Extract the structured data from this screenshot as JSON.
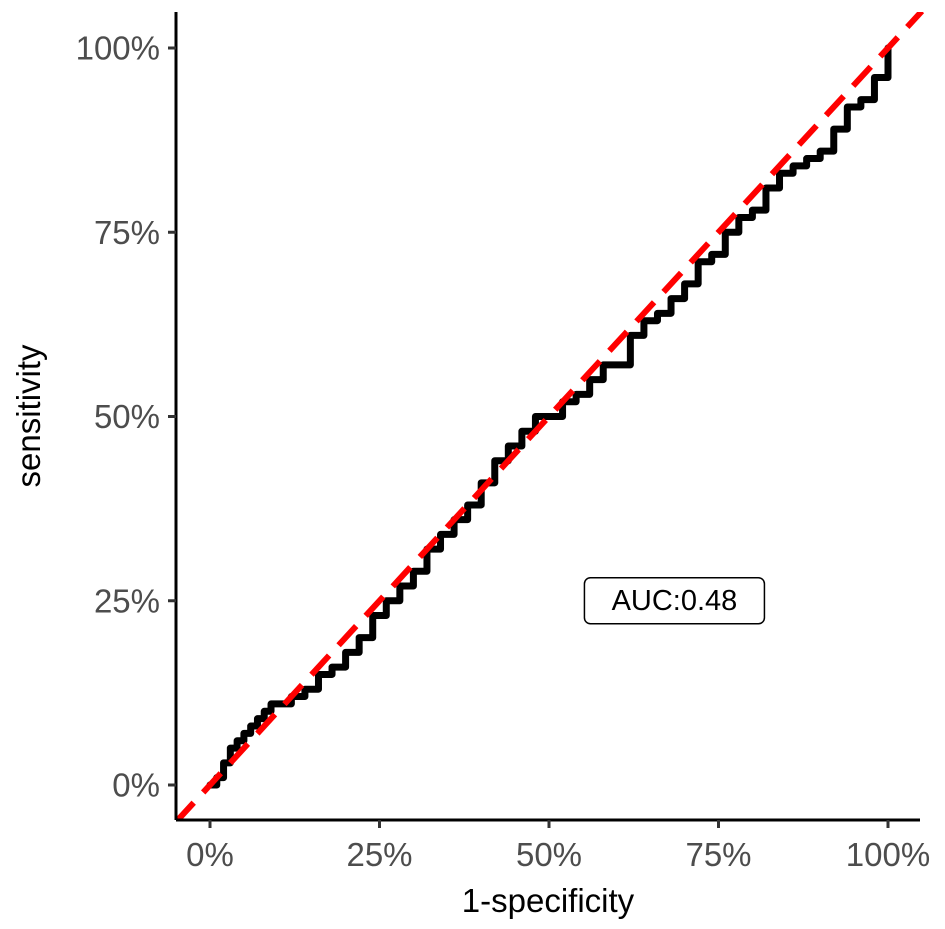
{
  "chart_data": {
    "type": "line",
    "xlabel": "1-specificity",
    "ylabel": "sensitivity",
    "xlim": [
      -0.05,
      1.05
    ],
    "ylim": [
      -0.05,
      1.05
    ],
    "x_ticks": [
      {
        "value": 0,
        "label": "0%"
      },
      {
        "value": 0.25,
        "label": "25%"
      },
      {
        "value": 0.5,
        "label": "50%"
      },
      {
        "value": 0.75,
        "label": "75%"
      },
      {
        "value": 1,
        "label": "100%"
      }
    ],
    "y_ticks": [
      {
        "value": 0,
        "label": "0%"
      },
      {
        "value": 0.25,
        "label": "25%"
      },
      {
        "value": 0.5,
        "label": "50%"
      },
      {
        "value": 0.75,
        "label": "75%"
      },
      {
        "value": 1,
        "label": "100%"
      }
    ],
    "grid": false,
    "series": [
      {
        "color": "#000000",
        "style": "solid-step",
        "x": [
          0,
          0.01,
          0.02,
          0.03,
          0.04,
          0.05,
          0.06,
          0.07,
          0.08,
          0.09,
          0.1,
          0.12,
          0.14,
          0.16,
          0.18,
          0.2,
          0.22,
          0.24,
          0.26,
          0.28,
          0.3,
          0.32,
          0.34,
          0.36,
          0.38,
          0.4,
          0.42,
          0.44,
          0.46,
          0.48,
          0.5,
          0.52,
          0.54,
          0.56,
          0.58,
          0.6,
          0.62,
          0.64,
          0.66,
          0.68,
          0.7,
          0.72,
          0.74,
          0.76,
          0.78,
          0.8,
          0.82,
          0.84,
          0.86,
          0.88,
          0.9,
          0.92,
          0.94,
          0.96,
          0.98,
          1.0
        ],
        "y": [
          0,
          0.01,
          0.03,
          0.05,
          0.06,
          0.07,
          0.08,
          0.09,
          0.1,
          0.11,
          0.11,
          0.12,
          0.13,
          0.15,
          0.16,
          0.18,
          0.2,
          0.23,
          0.25,
          0.27,
          0.29,
          0.32,
          0.34,
          0.36,
          0.38,
          0.41,
          0.44,
          0.46,
          0.48,
          0.5,
          0.5,
          0.52,
          0.53,
          0.55,
          0.57,
          0.57,
          0.61,
          0.63,
          0.64,
          0.66,
          0.68,
          0.71,
          0.72,
          0.75,
          0.77,
          0.78,
          0.81,
          0.83,
          0.84,
          0.85,
          0.86,
          0.89,
          0.92,
          0.93,
          0.96,
          1.0
        ]
      },
      {
        "color": "#ff0000",
        "style": "dashed",
        "x": [
          -0.05,
          1.05
        ],
        "y": [
          -0.05,
          1.05
        ]
      }
    ],
    "annotations": [
      {
        "text": "AUC:0.48",
        "x": 0.685,
        "y": 0.25
      }
    ]
  }
}
